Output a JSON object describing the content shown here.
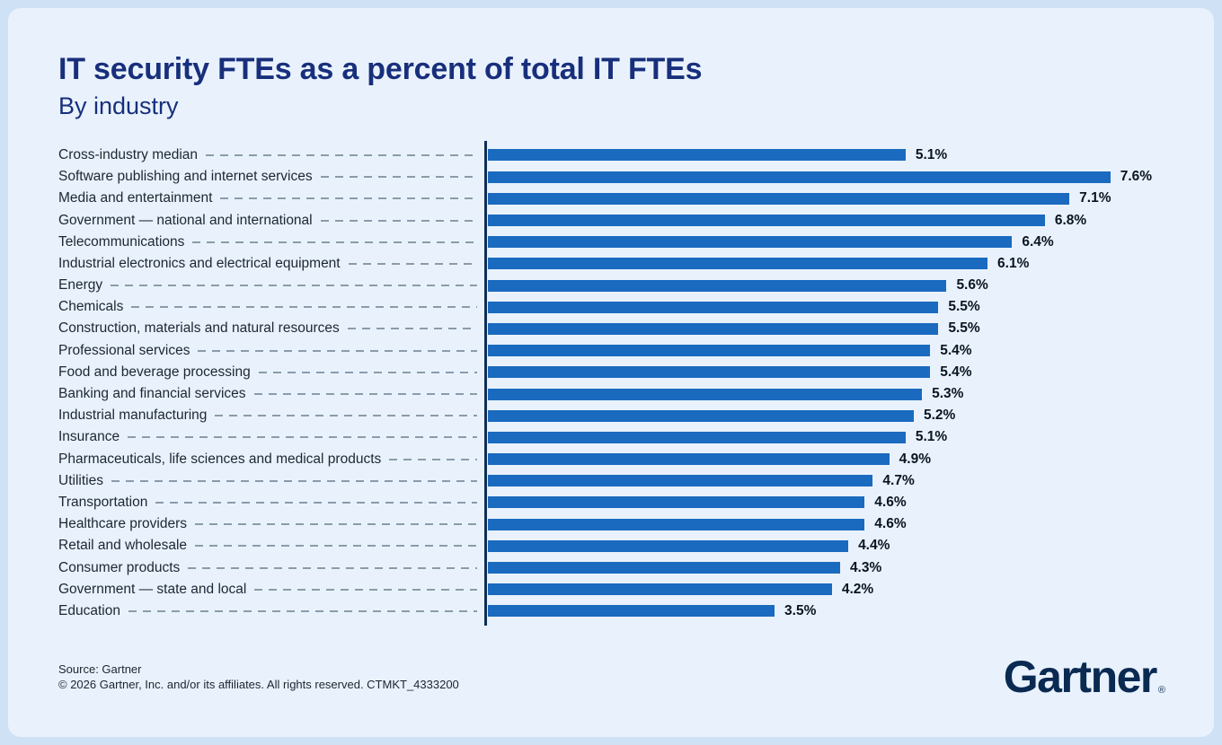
{
  "chart_data": {
    "type": "bar",
    "orientation": "horizontal",
    "title": "IT security FTEs as a percent of total IT FTEs",
    "subtitle": "By industry",
    "xlabel": "",
    "ylabel": "",
    "xlim": [
      0,
      8.25
    ],
    "grid": false,
    "legend": false,
    "categories": [
      "Cross-industry median",
      "Software publishing and internet services",
      "Media and entertainment",
      "Government — national and international",
      "Telecommunications",
      "Industrial electronics and electrical equipment",
      "Energy",
      "Chemicals",
      "Construction, materials and natural resources",
      "Professional services",
      "Food and beverage processing",
      "Banking and financial services",
      "Industrial manufacturing",
      "Insurance",
      "Pharmaceuticals, life sciences and medical products",
      "Utilities",
      "Transportation",
      "Healthcare providers",
      "Retail and wholesale",
      "Consumer products",
      "Government — state and local",
      "Education"
    ],
    "values": [
      5.1,
      7.6,
      7.1,
      6.8,
      6.4,
      6.1,
      5.6,
      5.5,
      5.5,
      5.4,
      5.4,
      5.3,
      5.2,
      5.1,
      4.9,
      4.7,
      4.6,
      4.6,
      4.4,
      4.3,
      4.2,
      3.5
    ],
    "value_labels": [
      "5.1%",
      "7.6%",
      "7.1%",
      "6.8%",
      "6.4%",
      "6.1%",
      "5.6%",
      "5.5%",
      "5.5%",
      "5.4%",
      "5.4%",
      "5.3%",
      "5.2%",
      "5.1%",
      "4.9%",
      "4.7%",
      "4.6%",
      "4.6%",
      "4.4%",
      "4.3%",
      "4.2%",
      "3.5%"
    ]
  },
  "footer": {
    "source": "Source: Gartner",
    "copyright": "© 2026 Gartner, Inc. and/or its affiliates. All rights reserved. CTMKT_4333200",
    "logo_text": "Gartner",
    "logo_registered": "®"
  },
  "colors": {
    "page_bg": "#cfe2f5",
    "card_bg": "#e9f2fc",
    "title_color": "#182f7c",
    "bar_color": "#1a6abf",
    "axis_color": "#0e2f54",
    "dash_color": "#8a9bac",
    "label_color": "#1b2733",
    "value_color": "#0a1522",
    "footer_color": "#1d2430",
    "logo_color": "#0a2a52"
  }
}
